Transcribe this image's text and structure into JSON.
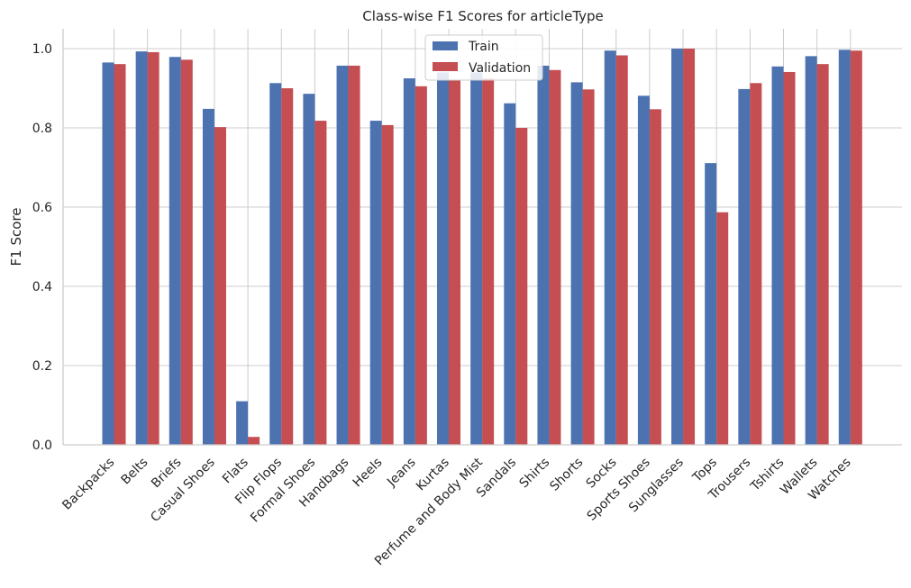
{
  "chart_data": {
    "type": "bar",
    "title": "Class-wise F1 Scores for articleType",
    "xlabel": "",
    "ylabel": "F1 Score",
    "ylim": [
      0,
      1.05
    ],
    "yticks": [
      "0.0",
      "0.2",
      "0.4",
      "0.6",
      "0.8",
      "1.0"
    ],
    "grid": true,
    "legend_position": "upper center",
    "categories": [
      "Backpacks",
      "Belts",
      "Briefs",
      "Casual Shoes",
      "Flats",
      "Flip Flops",
      "Formal Shoes",
      "Handbags",
      "Heels",
      "Jeans",
      "Kurtas",
      "Perfume and Body Mist",
      "Sandals",
      "Shirts",
      "Shorts",
      "Socks",
      "Sports Shoes",
      "Sunglasses",
      "Tops",
      "Trousers",
      "Tshirts",
      "Wallets",
      "Watches"
    ],
    "series": [
      {
        "name": "Train",
        "color": "#4c72b0",
        "values": [
          0.965,
          0.993,
          0.979,
          0.848,
          0.11,
          0.913,
          0.886,
          0.957,
          0.818,
          0.925,
          0.94,
          0.94,
          0.862,
          0.957,
          0.915,
          0.995,
          0.881,
          1.0,
          0.711,
          0.898,
          0.955,
          0.981,
          0.997
        ]
      },
      {
        "name": "Validation",
        "color": "#c44e52",
        "values": [
          0.961,
          0.991,
          0.972,
          0.802,
          0.02,
          0.9,
          0.818,
          0.957,
          0.807,
          0.905,
          0.92,
          0.925,
          0.8,
          0.946,
          0.897,
          0.983,
          0.847,
          1.0,
          0.587,
          0.913,
          0.941,
          0.961,
          0.995
        ]
      }
    ]
  }
}
